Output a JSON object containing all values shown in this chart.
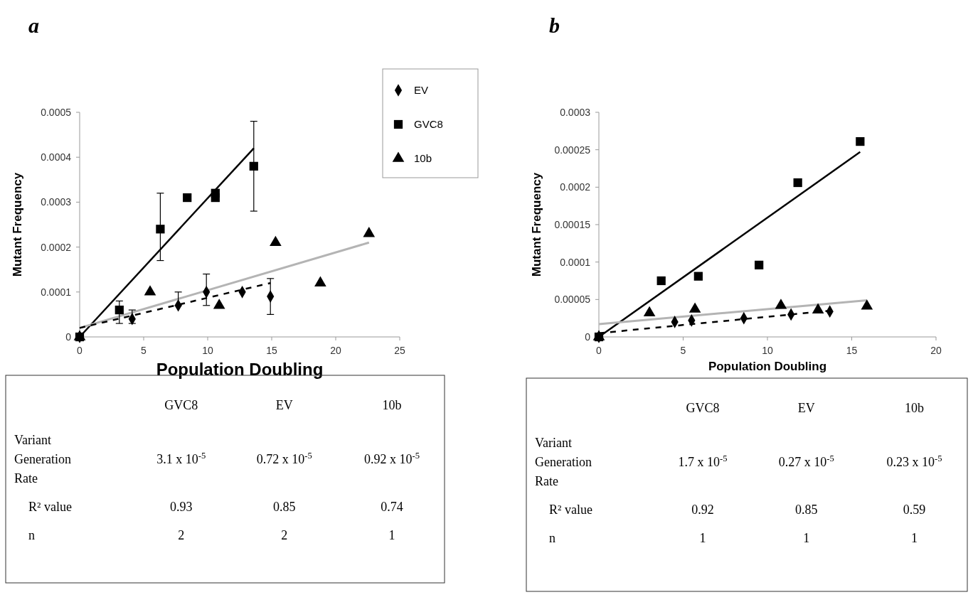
{
  "chart_data": [
    {
      "type": "scatter",
      "title": "a",
      "xlabel": "Population Doubling",
      "ylabel": "Mutant Frequency",
      "xlim": [
        0,
        25
      ],
      "xticks": [
        0,
        5,
        10,
        15,
        20,
        25
      ],
      "ylim": [
        0,
        0.0005
      ],
      "yticks": [
        0,
        0.0001,
        0.0002,
        0.0003,
        0.0004,
        0.0005
      ],
      "grid": false,
      "legend": "top right",
      "series": [
        {
          "type": "scatter",
          "name": "EV",
          "color": "#000000",
          "marker": "diamond",
          "x": [
            0,
            4.1,
            7.7,
            9.9,
            12.7,
            14.9
          ],
          "values": [
            0,
            4e-05,
            7e-05,
            0.0001,
            0.0001,
            9e-05
          ],
          "errors": [
            null,
            [
              3e-05,
              6e-05
            ],
            [
              7e-05,
              0.0001
            ],
            [
              7e-05,
              0.00014
            ],
            null,
            [
              5e-05,
              0.00013
            ]
          ]
        },
        {
          "type": "scatter",
          "name": "GVC8",
          "color": "#000000",
          "marker": "square",
          "x": [
            0,
            3.1,
            6.3,
            8.4,
            10.6,
            10.6,
            13.6
          ],
          "values": [
            0,
            6e-05,
            0.00024,
            0.00031,
            0.00032,
            0.00031,
            0.00038
          ],
          "errors": [
            null,
            [
              3e-05,
              8e-05
            ],
            [
              0.00017,
              0.00032
            ],
            null,
            null,
            null,
            [
              0.00028,
              0.00048
            ]
          ]
        },
        {
          "type": "scatter",
          "name": "10b",
          "color": "#000000",
          "marker": "triangle",
          "x": [
            0,
            5.5,
            10.9,
            15.3,
            18.8,
            22.6
          ],
          "values": [
            0,
            0.0001,
            7e-05,
            0.00021,
            0.00012,
            0.00023
          ]
        },
        {
          "type": "line",
          "color": "#000000",
          "line_style": "solid",
          "x": [
            0,
            13.6
          ],
          "values": [
            0,
            0.00042
          ]
        },
        {
          "type": "line",
          "color": "#b4b4b4",
          "line_style": "solid",
          "x": [
            0,
            22.6
          ],
          "values": [
            2e-05,
            0.00021
          ]
        },
        {
          "type": "line",
          "color": "#000000",
          "line_style": "dashed",
          "x": [
            0,
            14.9
          ],
          "values": [
            2e-05,
            0.00012
          ]
        }
      ],
      "annotations": [
        "GVC8",
        "EV",
        "10b",
        "Variant Generation Rate",
        "3.1 x 10$^{-5}$",
        "0.72 x 10$^{-5}$",
        "0.92 x 10$^{-5}$",
        "R² value",
        "0.93",
        "0.85",
        "0.74",
        "n",
        "2",
        "2",
        "1"
      ]
    },
    {
      "type": "scatter",
      "title": "b",
      "xlabel": "Population Doubling",
      "ylabel": "Mutant Frequency",
      "xlim": [
        0,
        20
      ],
      "xticks": [
        0,
        5,
        10,
        15,
        20
      ],
      "ylim": [
        0,
        0.0003
      ],
      "yticks": [
        0,
        {
          "value": 5e-05,
          "label": "0.00005"
        },
        0.0001,
        0.00015,
        0.0002,
        0.00025,
        0.0003
      ],
      "grid": false,
      "series": [
        {
          "type": "scatter",
          "color": "#000000",
          "marker": "diamond",
          "x": [
            0,
            4.5,
            5.5,
            8.6,
            11.4,
            13.7
          ],
          "values": [
            0,
            2e-05,
            2.2e-05,
            2.5e-05,
            3e-05,
            3.4e-05
          ]
        },
        {
          "type": "scatter",
          "color": "#000000",
          "marker": "square",
          "x": [
            0,
            3.7,
            5.9,
            9.5,
            11.8,
            15.5
          ],
          "values": [
            0,
            7.5e-05,
            8.1e-05,
            9.6e-05,
            0.000206,
            0.000261
          ]
        },
        {
          "type": "scatter",
          "color": "#000000",
          "marker": "triangle",
          "x": [
            0,
            3.0,
            5.7,
            10.8,
            13.0,
            15.9
          ],
          "values": [
            0,
            3.2e-05,
            3.7e-05,
            4.2e-05,
            3.6e-05,
            4.1e-05
          ]
        },
        {
          "type": "line",
          "color": "#000000",
          "line_style": "solid",
          "x": [
            0,
            15.5
          ],
          "values": [
            0,
            0.000247
          ]
        },
        {
          "type": "line",
          "color": "#b4b4b4",
          "line_style": "solid",
          "x": [
            0,
            15.9
          ],
          "values": [
            1.7e-05,
            4.9e-05
          ]
        },
        {
          "type": "line",
          "color": "#000000",
          "line_style": "dashed",
          "x": [
            0,
            13.7
          ],
          "values": [
            5e-06,
            3.5e-05
          ]
        }
      ],
      "annotations": [
        "GVC8",
        "EV",
        "10b",
        "Variant Generation Rate",
        "1.7 x 10$^{-5}$",
        "0.27 x 10$^{-5}$",
        "0.23 x 10$^{-5}$",
        "R² value",
        "0.92",
        "0.85",
        "0.59",
        "n",
        "1",
        "1",
        "1"
      ]
    }
  ]
}
